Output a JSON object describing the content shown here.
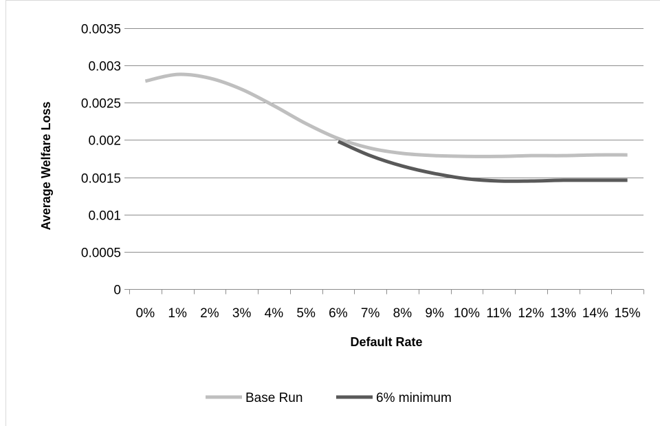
{
  "chart_data": {
    "type": "line",
    "title": "",
    "xlabel": "Default Rate",
    "ylabel": "Average Welfare Loss",
    "categories": [
      "0%",
      "1%",
      "2%",
      "3%",
      "4%",
      "5%",
      "6%",
      "7%",
      "8%",
      "9%",
      "10%",
      "11%",
      "12%",
      "13%",
      "14%",
      "15%"
    ],
    "ylim": [
      0,
      0.0035
    ],
    "yticks": [
      "0",
      "0.0005",
      "0.001",
      "0.0015",
      "0.002",
      "0.0025",
      "0.003",
      "0.0035"
    ],
    "grid": "horizontal",
    "legend_position": "bottom",
    "series": [
      {
        "name": "Base Run",
        "color": "#bfbfbf",
        "values": [
          0.00279,
          0.00288,
          0.00283,
          0.00268,
          0.00246,
          0.00222,
          0.00202,
          0.00189,
          0.00182,
          0.00179,
          0.00178,
          0.00178,
          0.00179,
          0.00179,
          0.0018,
          0.0018
        ]
      },
      {
        "name": "6% minimum",
        "color": "#595959",
        "values": [
          null,
          null,
          null,
          null,
          null,
          null,
          0.00198,
          0.00179,
          0.00165,
          0.00155,
          0.00148,
          0.00145,
          0.00145,
          0.00146,
          0.00146,
          0.00146
        ]
      }
    ]
  }
}
